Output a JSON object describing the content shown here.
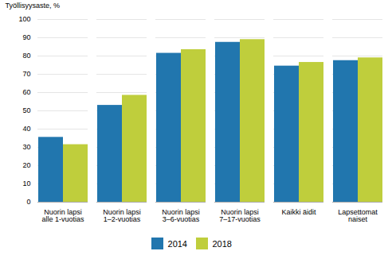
{
  "chart_data": {
    "type": "bar",
    "categories": [
      "Nuorin lapsi\nalle 1-vuotias",
      "Nuorin lapsi\n1–2-vuotias",
      "Nuorin lapsi\n3–6-vuotias",
      "Nuorin lapsi\n7–17-vuotias",
      "Kaikki äidit",
      "Lapsettomat\nnaiset"
    ],
    "series": [
      {
        "name": "2014",
        "color": "#2176AE",
        "values": [
          35.5,
          53.0,
          81.5,
          87.5,
          74.5,
          77.5
        ]
      },
      {
        "name": "2018",
        "color": "#BFCE3C",
        "values": [
          31.5,
          58.5,
          83.5,
          89.0,
          76.5,
          79.0
        ]
      }
    ],
    "ylabel": "Työllisyysaste, %",
    "ylim": [
      0,
      100
    ],
    "yticks": [
      0,
      10,
      20,
      30,
      40,
      50,
      60,
      70,
      80,
      90,
      100
    ],
    "grid": true,
    "legend": "bottom"
  }
}
